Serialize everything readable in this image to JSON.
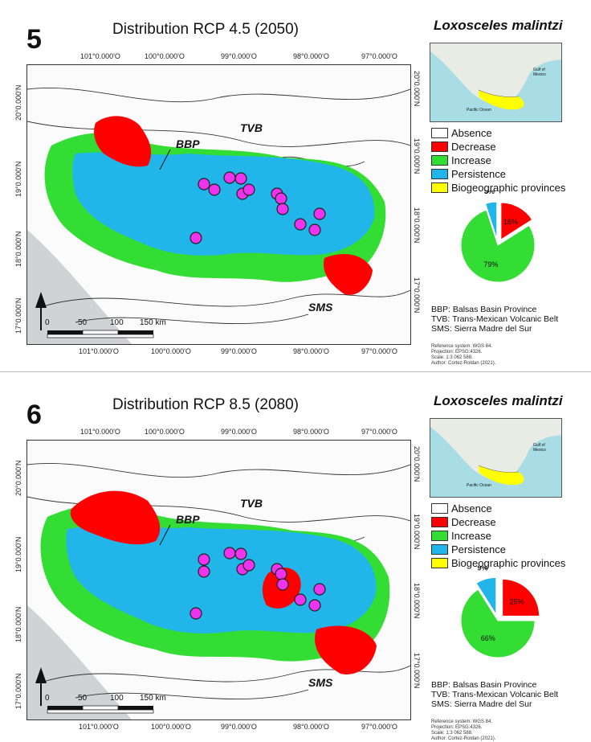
{
  "panels": [
    {
      "number": "5",
      "title": "Distribution RCP 4.5 (2050)",
      "species": "Loxosceles malintzi",
      "pie": {
        "persistence": 5,
        "decrease": 16,
        "increase": 79
      },
      "pie_labels": {
        "persistence": "5%",
        "decrease": "16%",
        "increase": "79%"
      }
    },
    {
      "number": "6",
      "title": "Distribution RCP 8.5 (2080)",
      "species": "Loxosceles malintzi",
      "pie": {
        "persistence": 9,
        "decrease": 25,
        "increase": 66
      },
      "pie_labels": {
        "persistence": "9%",
        "decrease": "25%",
        "increase": "66%"
      }
    }
  ],
  "map": {
    "top_ticks": [
      "101°0.000'O",
      "100°0.000'O",
      "99°0.000'O",
      "98°0.000'O",
      "97°0.000'O"
    ],
    "bottom_ticks": [
      "101°0.000'O",
      "100°0.000'O",
      "99°0.000'O",
      "98°0.000'O",
      "97°0.000'O"
    ],
    "left_ticks": [
      "20°0.000'N",
      "19°0.000'N",
      "18°0.000'N",
      "17°0.000'N"
    ],
    "right_ticks": [
      "20°0.000'N",
      "19°0.000'N",
      "18°0.000'N",
      "17°0.000'N"
    ],
    "labels": {
      "bbp": "BBP",
      "tvb": "TVB",
      "sms": "SMS"
    },
    "scale": {
      "t0": "0",
      "t50": "50",
      "t100": "100",
      "t150": "150 km"
    },
    "inset": {
      "pacific": "Pacific Ocean",
      "gulf": "Gulf of Mexico"
    }
  },
  "legend": [
    {
      "label": "Absence",
      "color": "#ffffff"
    },
    {
      "label": "Decrease",
      "color": "#ff0000"
    },
    {
      "label": "Increase",
      "color": "#33dd33"
    },
    {
      "label": "Persistence",
      "color": "#22b5ea"
    },
    {
      "label": "Biogeographic provinces",
      "color": "#ffff00"
    }
  ],
  "abbreviations": [
    "BBP: Balsas Basin Province",
    "TVB: Trans-Mexican Volcanic Belt",
    "SMS: Sierra Madre del Sur"
  ],
  "reference": [
    "Reference system: WGS 84.",
    "Projection: EPSG:4326.",
    "Scale: 1:3 062 588.",
    "Author: Cortez-Roldan (2021)."
  ],
  "colors": {
    "absence": "#ffffff",
    "decrease": "#ff0000",
    "increase": "#33dd33",
    "persistence": "#22b5ea",
    "provinces": "#ffff00",
    "point": "#ee33ee"
  }
}
